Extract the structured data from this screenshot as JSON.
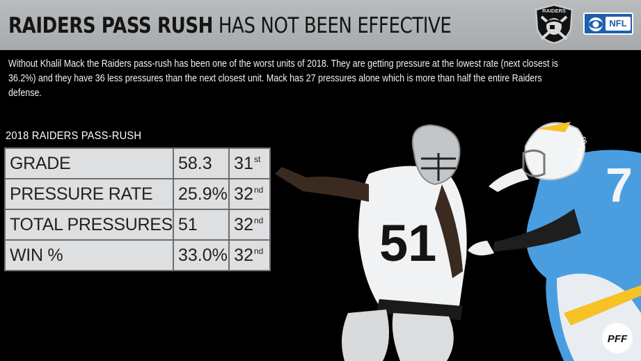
{
  "header": {
    "title_bold": "RAIDERS PASS RUSH",
    "title_light": "HAS NOT BEEN EFFECTIVE",
    "logo_text": "RAIDERS",
    "nfl_badge_text": "NFL",
    "background_color": "#aeb1b3"
  },
  "intro": {
    "text": "Without Khalil Mack the Raiders pass-rush has been one of the worst units of 2018. They are getting pressure at the lowest rate (next closest is 36.2%) and they have 36 less pressures than the next closest unit. Mack has 27 pressures alone which is more than half the entire Raiders defense."
  },
  "stats": {
    "title": "2018 RAIDERS PASS-RUSH",
    "rows": [
      {
        "metric": "GRADE",
        "value": "58.3",
        "rank_num": "31",
        "rank_suffix": "st"
      },
      {
        "metric": "PRESSURE RATE",
        "value": "25.9%",
        "rank_num": "32",
        "rank_suffix": "nd"
      },
      {
        "metric": "TOTAL PRESSURES",
        "value": "51",
        "rank_num": "32",
        "rank_suffix": "nd"
      },
      {
        "metric": "WIN %",
        "value": "33.0%",
        "rank_num": "32",
        "rank_suffix": "nd"
      }
    ]
  },
  "photo": {
    "raider_jersey_number": "51",
    "charger_jersey_number": "7",
    "charger_nameplate": "DUNLAP"
  },
  "footer": {
    "brand_text": "PFF"
  },
  "colors": {
    "background": "#000000",
    "table_cell": "#dedfe0",
    "table_border": "#6c6d6f",
    "nfl_blue": "#1d5fae",
    "charger_blue": "#4a9ee0",
    "charger_gold": "#f6c224"
  }
}
